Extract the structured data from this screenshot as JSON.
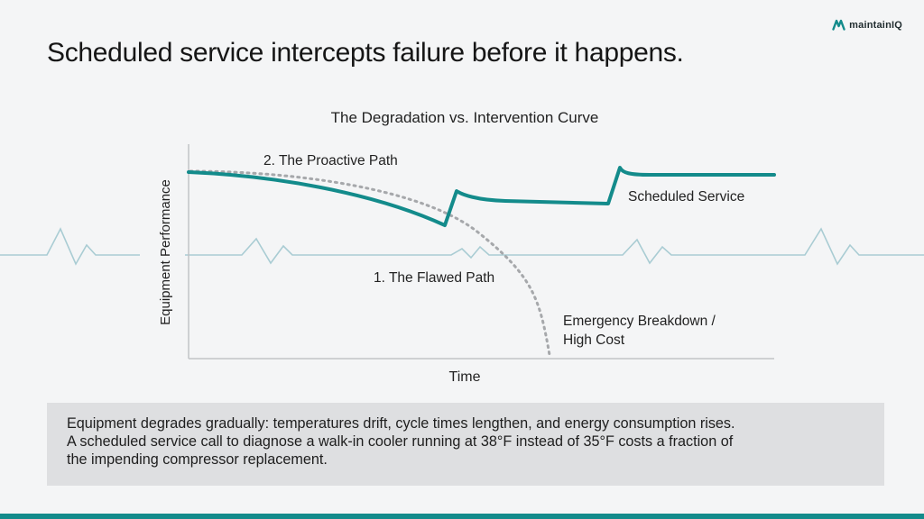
{
  "brand": {
    "logo_text": "maintainIQ"
  },
  "headline": "Scheduled service intercepts failure before it happens.",
  "diagram": {
    "title": "The Degradation vs. Intervention Curve",
    "y_axis_label": "Equipment Performance",
    "x_axis_label": "Time",
    "labels": {
      "proactive_path": "2. The Proactive Path",
      "scheduled_service": "Scheduled Service",
      "flawed_path": "1. The Flawed Path",
      "breakdown_line1": "Emergency Breakdown /",
      "breakdown_line2": "High Cost"
    }
  },
  "caption": {
    "line1": "Equipment degrades gradually: temperatures drift, cycle times lengthen, and energy consumption rises.",
    "line2": "A scheduled service call to diagnose a walk-in cooler running at 38°F instead of 35°F costs a fraction of",
    "line3": "the impending compressor replacement."
  },
  "colors": {
    "accent": "#138b8b",
    "heartbeat": "#a9ccd3",
    "flawed_path": "#a6a8ab"
  }
}
